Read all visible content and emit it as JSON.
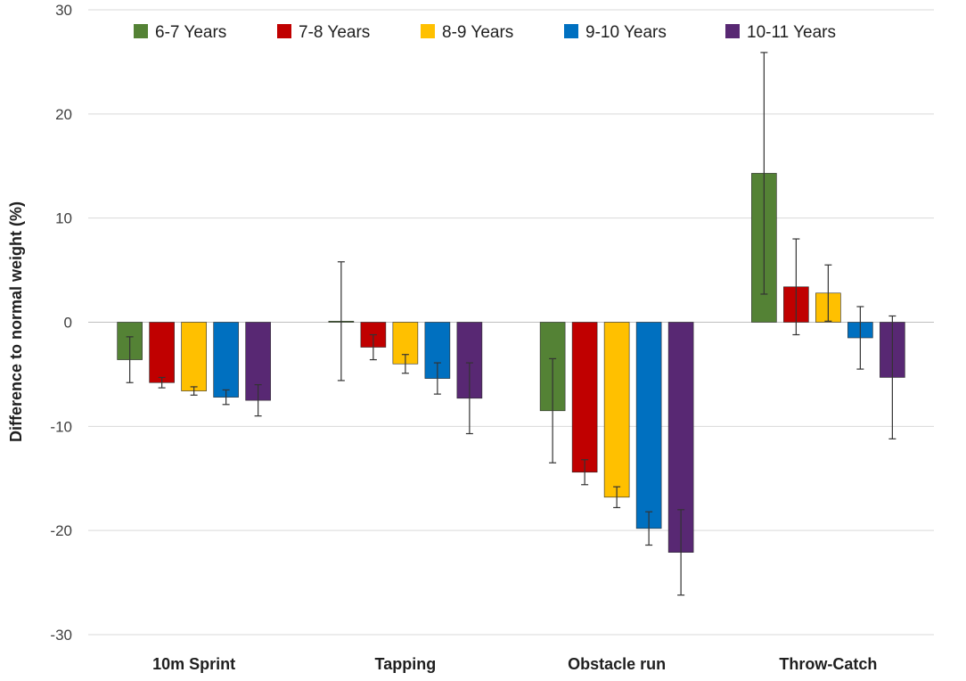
{
  "chart_data": {
    "type": "bar",
    "title": "",
    "xlabel": "",
    "ylabel": "Difference to normal weight (%)",
    "ylim": [
      -30,
      30
    ],
    "yticks": [
      30,
      20,
      10,
      0,
      -10,
      -20,
      -30
    ],
    "grid": true,
    "legend_position": "top",
    "categories": [
      "10m Sprint",
      "Tapping",
      "Obstacle run",
      "Throw-Catch"
    ],
    "series": [
      {
        "name": "6-7 Years",
        "color": "#548235",
        "values": [
          -3.6,
          0.1,
          -8.5,
          14.3
        ],
        "errors": [
          2.2,
          5.7,
          5.0,
          11.6
        ]
      },
      {
        "name": "7-8 Years",
        "color": "#c00000",
        "values": [
          -5.8,
          -2.4,
          -14.4,
          3.4
        ],
        "errors": [
          0.5,
          1.2,
          1.2,
          4.6
        ]
      },
      {
        "name": "8-9 Years",
        "color": "#ffc000",
        "values": [
          -6.6,
          -4.0,
          -16.8,
          2.8
        ],
        "errors": [
          0.4,
          0.9,
          1.0,
          2.7
        ]
      },
      {
        "name": "9-10 Years",
        "color": "#0070c0",
        "values": [
          -7.2,
          -5.4,
          -19.8,
          -1.5
        ],
        "errors": [
          0.7,
          1.5,
          1.6,
          3.0
        ]
      },
      {
        "name": "10-11 Years",
        "color": "#582873",
        "values": [
          -7.5,
          -7.3,
          -22.1,
          -5.3
        ],
        "errors": [
          1.5,
          3.4,
          4.1,
          5.9
        ]
      }
    ]
  }
}
